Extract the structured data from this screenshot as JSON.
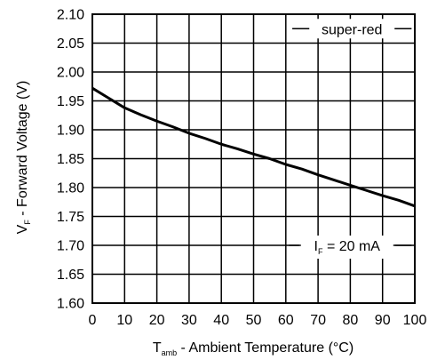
{
  "chart_data": {
    "type": "line",
    "title": "",
    "xlabel": {
      "main": "T",
      "sub": "amb",
      "rest": " - Ambient Temperature (°C)"
    },
    "ylabel": {
      "main": "V",
      "sub": "F",
      "rest": " - Forward Voltage (V)"
    },
    "xlim": [
      0,
      100
    ],
    "ylim": [
      1.6,
      2.1
    ],
    "x_ticks": [
      "0",
      "10",
      "20",
      "30",
      "40",
      "50",
      "60",
      "70",
      "80",
      "90",
      "100"
    ],
    "y_ticks": [
      "2.10",
      "2.05",
      "2.00",
      "1.95",
      "1.90",
      "1.85",
      "1.80",
      "1.75",
      "1.70",
      "1.65",
      "1.60"
    ],
    "grid": true,
    "series": [
      {
        "name": "super-red",
        "x": [
          0,
          5,
          10,
          15,
          20,
          25,
          30,
          35,
          40,
          45,
          50,
          55,
          60,
          65,
          70,
          75,
          80,
          85,
          90,
          95,
          100
        ],
        "y": [
          1.972,
          1.955,
          1.938,
          1.926,
          1.915,
          1.905,
          1.894,
          1.885,
          1.875,
          1.867,
          1.858,
          1.85,
          1.84,
          1.832,
          1.822,
          1.813,
          1.804,
          1.795,
          1.786,
          1.778,
          1.768
        ]
      }
    ],
    "annotations": {
      "series_label": "super-red",
      "condition": {
        "main": "I",
        "sub": "F",
        "rest": " = 20 mA"
      }
    }
  }
}
